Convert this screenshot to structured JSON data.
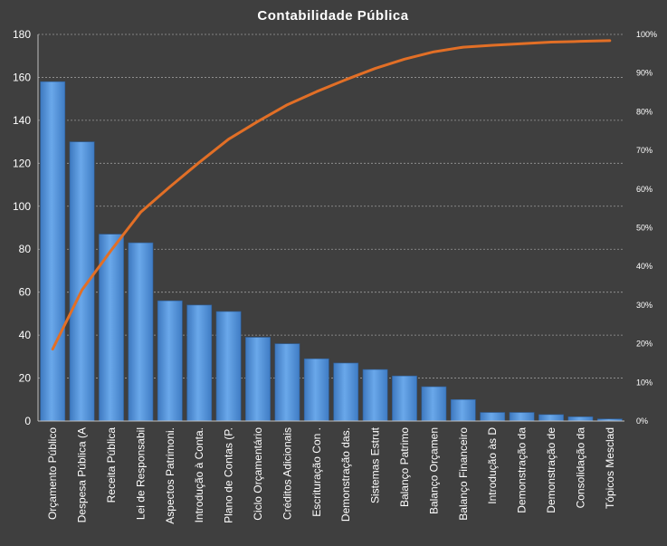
{
  "chart_data": {
    "type": "bar",
    "title": "Contabilidade  Pública",
    "categories": [
      "Orçamento Público",
      "Despesa Pública (A",
      "Receita Pública",
      "Lei de Responsabil",
      "Aspectos Patrimoni.",
      "Introdução à Conta.",
      "Plano de Contas (P.",
      "Ciclo Orçamentário",
      "Créditos Adicionais",
      "Escrituração Con .",
      "Demonstração das.",
      "Sistemas Estrut",
      "Balanço Patrimo",
      "Balanço Orçamen",
      "Balanço Financeiro",
      "Introdução às D",
      "Demonstração da",
      "Demonstração de",
      "Consolidação da",
      "Tópicos Mesclad"
    ],
    "series": [
      {
        "type": "bar",
        "color": "#4e8fd6",
        "values": [
          158,
          130,
          87,
          83,
          56,
          54,
          51,
          39,
          36,
          29,
          27,
          24,
          21,
          16,
          10,
          4,
          4,
          3,
          2,
          1
        ]
      },
      {
        "type": "line",
        "axis": "right",
        "color": "#e26f26",
        "values": [
          18.6,
          33.9,
          44.2,
          54.0,
          60.6,
          66.9,
          72.9,
          77.5,
          81.8,
          85.2,
          88.3,
          91.2,
          93.6,
          95.5,
          96.7,
          97.2,
          97.6,
          98.0,
          98.2,
          98.4
        ]
      }
    ],
    "ylim": [
      0,
      180
    ],
    "yticks": [
      0,
      20,
      40,
      60,
      80,
      100,
      120,
      140,
      160,
      180
    ],
    "y2lim": [
      0,
      100
    ],
    "y2ticks": [
      "0%",
      "10%",
      "20%",
      "30%",
      "40%",
      "50%",
      "60%",
      "70%",
      "80%",
      "90%",
      "100%"
    ],
    "grid": true,
    "legend": "none"
  }
}
